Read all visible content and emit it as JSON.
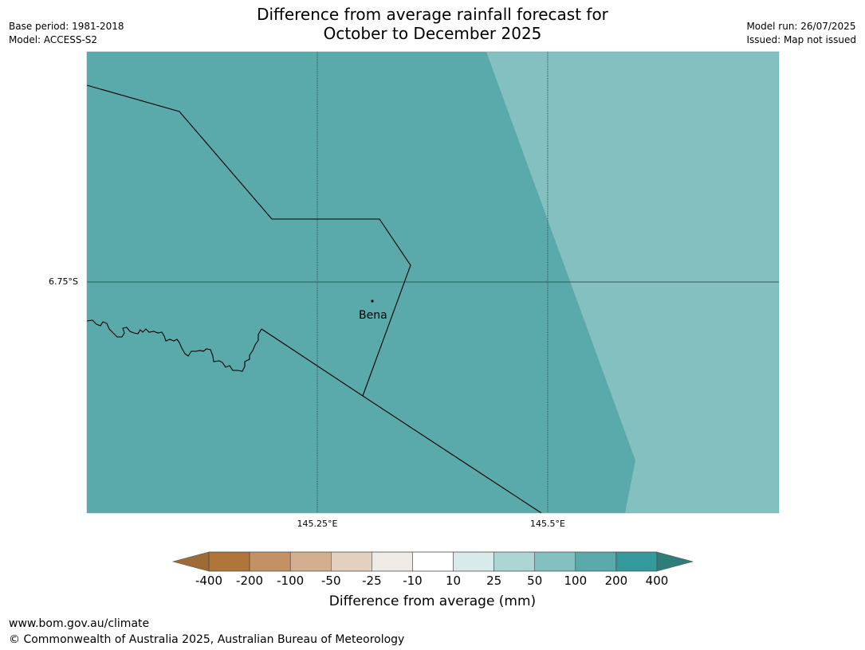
{
  "title": {
    "line1": "Difference from average rainfall forecast for",
    "line2": "October to December 2025"
  },
  "meta_left": {
    "base_period": "Base period: 1981-2018",
    "model": "Model: ACCESS-S2"
  },
  "meta_right": {
    "model_run": "Model run: 26/07/2025",
    "issued": "Issued: Map not issued"
  },
  "map": {
    "lat_label": "6.75°S",
    "lon_labels": [
      "145.25°E",
      "145.5°E"
    ],
    "place": "Bena",
    "colors": {
      "main": "#5aaaab",
      "light": "#84c0bf",
      "grid": "#1f4a4a"
    }
  },
  "colorbar": {
    "labels": [
      "-400",
      "-200",
      "-100",
      "-50",
      "-25",
      "-10",
      "10",
      "25",
      "50",
      "100",
      "200",
      "400"
    ],
    "colors": [
      "#9e6a35",
      "#b07539",
      "#c29265",
      "#d2b08f",
      "#e4d0bf",
      "#efebe7",
      "#ffffff",
      "#d8eaea",
      "#acd5d4",
      "#84c0bf",
      "#5aaaab",
      "#33999a",
      "#2e7d79"
    ],
    "title": "Difference from average (mm)"
  },
  "footer": {
    "url": "www.bom.gov.au/climate",
    "copyright": "© Commonwealth of Australia 2025, Australian Bureau of Meteorology"
  }
}
